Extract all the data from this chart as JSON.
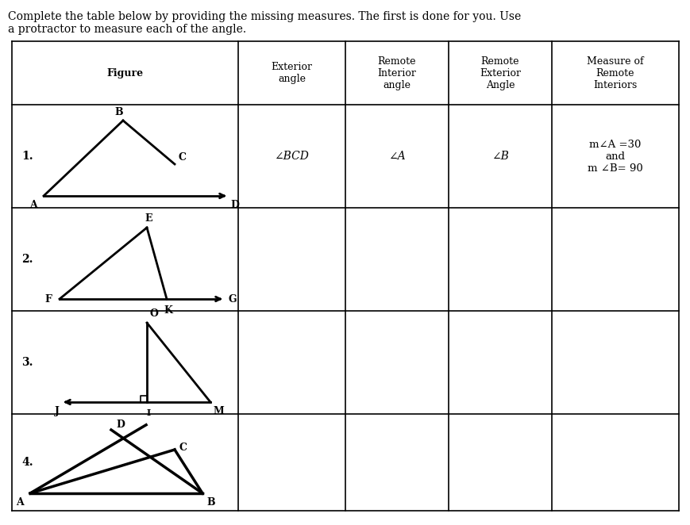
{
  "title": "Complete the table below by providing the missing measures. The first is done for you. Use\na protractor to measure each of the angle.",
  "col_headers": [
    "Figure",
    "Exterior\nangle",
    "Remote\nInterior\nangle",
    "Remote\nExterior\nAngle",
    "Measure of\nRemote\nInteriors"
  ],
  "row_labels": [
    "1.",
    "2.",
    "3.",
    "4."
  ],
  "row1_col2": "∠BCD",
  "row1_col3": "∠A",
  "row1_col4": "∠B",
  "row1_col5": "m∠A =30\nand\nm ∠B= 90",
  "background": "#ffffff",
  "text_color": "#000000"
}
